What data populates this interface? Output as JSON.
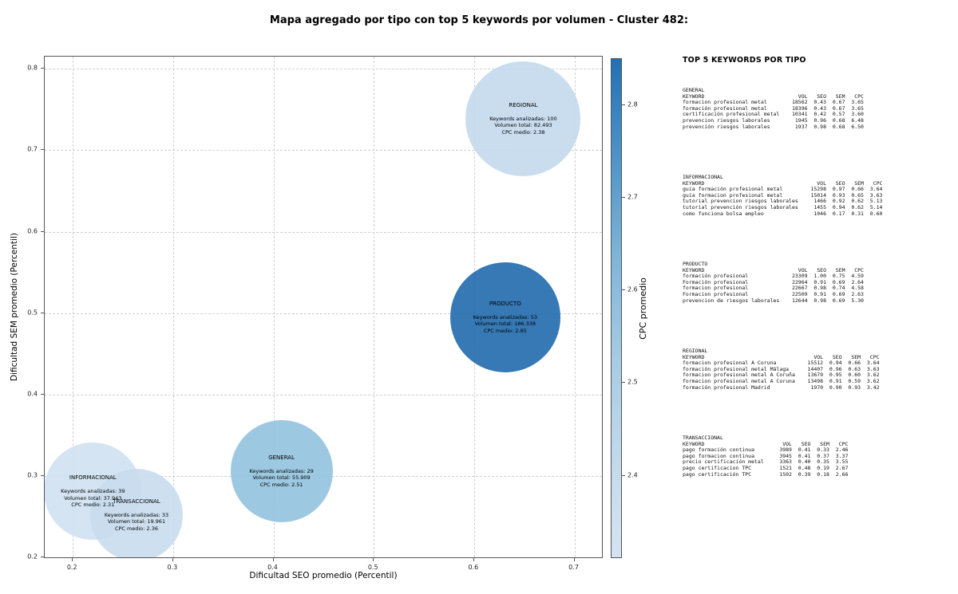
{
  "title": "Mapa agregado por tipo con top 5 keywords por volumen - Cluster 482:",
  "chart_data": {
    "type": "scatter",
    "title": "Mapa agregado por tipo con top 5 keywords por volumen - Cluster 482:",
    "xlabel": "Dificultad SEO promedio (Percentil)",
    "ylabel": "Dificultad SEM promedio (Percentil)",
    "xlim": [
      0.172,
      0.729
    ],
    "ylim": [
      0.198,
      0.815
    ],
    "xticks": [
      "0.2",
      "0.3",
      "0.4",
      "0.5",
      "0.6",
      "0.7"
    ],
    "yticks": [
      "0.2",
      "0.3",
      "0.4",
      "0.5",
      "0.6",
      "0.7",
      "0.8"
    ],
    "grid": true,
    "legend_position": "none",
    "colorbar": {
      "label": "CPC promedio",
      "min": 2.31,
      "max": 2.85,
      "ticks": [
        "2.4",
        "2.5",
        "2.6",
        "2.7",
        "2.8"
      ],
      "gradient": [
        "#d5e4f2",
        "#c2d9ec",
        "#a6cbe3",
        "#7fb5d8",
        "#4f94c8",
        "#2171b5"
      ]
    },
    "bubbles": [
      {
        "id": "regional",
        "label": "REGIONAL",
        "x": 0.649,
        "y": 0.739,
        "r": 72,
        "keywords": 100,
        "volumen_total": "82.493",
        "cpc_medio": 2.38,
        "color": "#c2d8ec",
        "stats": [
          "Keywords analizadas: 100",
          "Volumen total: 82.493",
          "CPC medio: 2.38"
        ]
      },
      {
        "id": "producto",
        "label": "PRODUCTO",
        "x": 0.631,
        "y": 0.495,
        "r": 69,
        "keywords": 53,
        "volumen_total": "186.338",
        "cpc_medio": 2.85,
        "color": "#1a67ab",
        "stats": [
          "Keywords analizadas: 53",
          "Volumen total: 186.338",
          "CPC medio: 2.85"
        ]
      },
      {
        "id": "general",
        "label": "GENERAL",
        "x": 0.408,
        "y": 0.306,
        "r": 64,
        "keywords": 29,
        "volumen_total": "55.909",
        "cpc_medio": 2.51,
        "color": "#8fc0dd",
        "stats": [
          "Keywords analizadas: 29",
          "Volumen total: 55.909",
          "CPC medio: 2.51"
        ]
      },
      {
        "id": "informacional",
        "label": "INFORMACIONAL",
        "x": 0.22,
        "y": 0.281,
        "r": 61,
        "keywords": 39,
        "volumen_total": "37.943",
        "cpc_medio": 2.31,
        "color": "#cfe0f0",
        "stats": [
          "Keywords analizadas: 39",
          "Volumen total: 37.943",
          "CPC medio: 2.31"
        ]
      },
      {
        "id": "transaccional",
        "label": "TRANSACCIONAL",
        "x": 0.2635,
        "y": 0.252,
        "r": 58,
        "keywords": 33,
        "volumen_total": "19.961",
        "cpc_medio": 2.36,
        "color": "#c7dcee",
        "stats": [
          "Keywords analizadas: 33",
          "Volumen total: 19.961",
          "CPC medio: 2.36"
        ]
      }
    ]
  },
  "panel": {
    "title": "TOP 5 KEYWORDS POR TIPO",
    "columns": [
      "KEYWORD",
      "VOL",
      "SEO",
      "SEM",
      "CPC"
    ],
    "sections": [
      {
        "type": "GENERAL",
        "rows": [
          {
            "keyword": "formacion profesional metal",
            "vol": "18562",
            "seo": "0.43",
            "sem": "0.67",
            "cpc": "3.65"
          },
          {
            "keyword": "formación profesional metal",
            "vol": "18396",
            "seo": "0.43",
            "sem": "0.67",
            "cpc": "3.65"
          },
          {
            "keyword": "certificación profesional metal",
            "vol": "10341",
            "seo": "0.42",
            "sem": "0.57",
            "cpc": "3.60"
          },
          {
            "keyword": "prevencion riesgos laborales",
            "vol": "1945",
            "seo": "0.96",
            "sem": "0.68",
            "cpc": "6.48"
          },
          {
            "keyword": "prevención riesgos laborales",
            "vol": "1937",
            "seo": "0.98",
            "sem": "0.68",
            "cpc": "6.50"
          }
        ]
      },
      {
        "type": "INFORMACIONAL",
        "rows": [
          {
            "keyword": "guia formación profesional metal",
            "vol": "15298",
            "seo": "0.97",
            "sem": "0.66",
            "cpc": "3.64"
          },
          {
            "keyword": "guía formacion profesional metal",
            "vol": "15014",
            "seo": "0.93",
            "sem": "0.65",
            "cpc": "3.63"
          },
          {
            "keyword": "tutorial prevencion riesgos laborales",
            "vol": "1466",
            "seo": "0.92",
            "sem": "0.62",
            "cpc": "5.13"
          },
          {
            "keyword": "tutorial prevención riesgos laborales",
            "vol": "1455",
            "seo": "0.94",
            "sem": "0.62",
            "cpc": "5.14"
          },
          {
            "keyword": "como funciona bolsa empleo",
            "vol": "1046",
            "seo": "0.17",
            "sem": "0.31",
            "cpc": "0.60"
          }
        ]
      },
      {
        "type": "PRODUCTO",
        "rows": [
          {
            "keyword": "formación profesional",
            "vol": "23309",
            "seo": "1.00",
            "sem": "0.75",
            "cpc": "4.59"
          },
          {
            "keyword": "Formación profesional",
            "vol": "22964",
            "seo": "0.91",
            "sem": "0.69",
            "cpc": "2.64"
          },
          {
            "keyword": "formacion profesional",
            "vol": "22667",
            "seo": "0.98",
            "sem": "0.74",
            "cpc": "4.58"
          },
          {
            "keyword": "Formacion profesional",
            "vol": "22509",
            "seo": "0.91",
            "sem": "0.69",
            "cpc": "2.63"
          },
          {
            "keyword": "prevencion de riesgos laborales",
            "vol": "12644",
            "seo": "0.98",
            "sem": "0.69",
            "cpc": "5.30"
          }
        ]
      },
      {
        "type": "REGIONAL",
        "rows": [
          {
            "keyword": "formacion profesional A Coruna",
            "vol": "15512",
            "seo": "0.94",
            "sem": "0.66",
            "cpc": "3.64"
          },
          {
            "keyword": "formación profesional metal Málaga",
            "vol": "14407",
            "seo": "0.96",
            "sem": "0.63",
            "cpc": "3.63"
          },
          {
            "keyword": "formacion profesional metal A Coruña",
            "vol": "13679",
            "seo": "0.95",
            "sem": "0.60",
            "cpc": "3.62"
          },
          {
            "keyword": "formacion profesional metal A Coruna",
            "vol": "13498",
            "seo": "0.91",
            "sem": "0.59",
            "cpc": "3.62"
          },
          {
            "keyword": "formación profesional Madrid",
            "vol": "1970",
            "seo": "0.90",
            "sem": "0.93",
            "cpc": "3.42"
          }
        ]
      },
      {
        "type": "TRANSACCIONAL",
        "rows": [
          {
            "keyword": "pago formación continua",
            "vol": "3989",
            "seo": "0.41",
            "sem": "0.33",
            "cpc": "2.46"
          },
          {
            "keyword": "pago formacion continua",
            "vol": "3945",
            "seo": "0.41",
            "sem": "0.37",
            "cpc": "3.37"
          },
          {
            "keyword": "precio certificación metal",
            "vol": "3363",
            "seo": "0.40",
            "sem": "0.35",
            "cpc": "3.55"
          },
          {
            "keyword": "pago certificacion TPC",
            "vol": "1521",
            "seo": "0.48",
            "sem": "0.19",
            "cpc": "2.67"
          },
          {
            "keyword": "pago certificación TPC",
            "vol": "1502",
            "seo": "0.39",
            "sem": "0.18",
            "cpc": "2.66"
          }
        ]
      }
    ]
  }
}
